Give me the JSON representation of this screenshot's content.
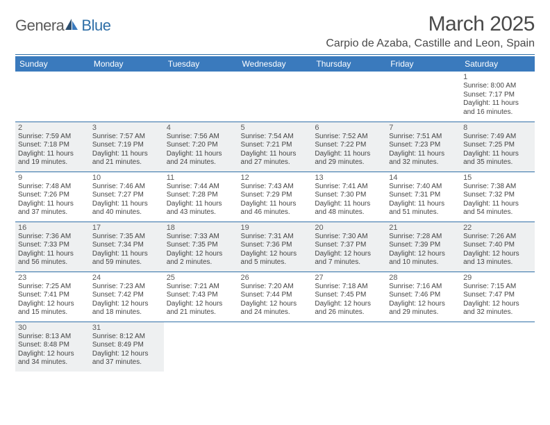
{
  "logo": {
    "part1": "Genera",
    "part2": "Blue"
  },
  "title": "March 2025",
  "location": "Carpio de Azaba, Castille and Leon, Spain",
  "colors": {
    "header_bg": "#3a7abd",
    "header_text": "#ffffff",
    "rule": "#2f6fa7",
    "shaded": "#eef0f1",
    "text": "#444444",
    "logo_gray": "#5a5a5a",
    "logo_blue": "#2f6fa7"
  },
  "weekdays": [
    "Sunday",
    "Monday",
    "Tuesday",
    "Wednesday",
    "Thursday",
    "Friday",
    "Saturday"
  ],
  "cells": [
    [
      {
        "day": "",
        "lines": []
      },
      {
        "day": "",
        "lines": []
      },
      {
        "day": "",
        "lines": []
      },
      {
        "day": "",
        "lines": []
      },
      {
        "day": "",
        "lines": []
      },
      {
        "day": "",
        "lines": []
      },
      {
        "day": "1",
        "lines": [
          "Sunrise: 8:00 AM",
          "Sunset: 7:17 PM",
          "Daylight: 11 hours",
          "and 16 minutes."
        ]
      }
    ],
    [
      {
        "day": "2",
        "shaded": true,
        "lines": [
          "Sunrise: 7:59 AM",
          "Sunset: 7:18 PM",
          "Daylight: 11 hours",
          "and 19 minutes."
        ]
      },
      {
        "day": "3",
        "shaded": true,
        "lines": [
          "Sunrise: 7:57 AM",
          "Sunset: 7:19 PM",
          "Daylight: 11 hours",
          "and 21 minutes."
        ]
      },
      {
        "day": "4",
        "shaded": true,
        "lines": [
          "Sunrise: 7:56 AM",
          "Sunset: 7:20 PM",
          "Daylight: 11 hours",
          "and 24 minutes."
        ]
      },
      {
        "day": "5",
        "shaded": true,
        "lines": [
          "Sunrise: 7:54 AM",
          "Sunset: 7:21 PM",
          "Daylight: 11 hours",
          "and 27 minutes."
        ]
      },
      {
        "day": "6",
        "shaded": true,
        "lines": [
          "Sunrise: 7:52 AM",
          "Sunset: 7:22 PM",
          "Daylight: 11 hours",
          "and 29 minutes."
        ]
      },
      {
        "day": "7",
        "shaded": true,
        "lines": [
          "Sunrise: 7:51 AM",
          "Sunset: 7:23 PM",
          "Daylight: 11 hours",
          "and 32 minutes."
        ]
      },
      {
        "day": "8",
        "shaded": true,
        "lines": [
          "Sunrise: 7:49 AM",
          "Sunset: 7:25 PM",
          "Daylight: 11 hours",
          "and 35 minutes."
        ]
      }
    ],
    [
      {
        "day": "9",
        "lines": [
          "Sunrise: 7:48 AM",
          "Sunset: 7:26 PM",
          "Daylight: 11 hours",
          "and 37 minutes."
        ]
      },
      {
        "day": "10",
        "lines": [
          "Sunrise: 7:46 AM",
          "Sunset: 7:27 PM",
          "Daylight: 11 hours",
          "and 40 minutes."
        ]
      },
      {
        "day": "11",
        "lines": [
          "Sunrise: 7:44 AM",
          "Sunset: 7:28 PM",
          "Daylight: 11 hours",
          "and 43 minutes."
        ]
      },
      {
        "day": "12",
        "lines": [
          "Sunrise: 7:43 AM",
          "Sunset: 7:29 PM",
          "Daylight: 11 hours",
          "and 46 minutes."
        ]
      },
      {
        "day": "13",
        "lines": [
          "Sunrise: 7:41 AM",
          "Sunset: 7:30 PM",
          "Daylight: 11 hours",
          "and 48 minutes."
        ]
      },
      {
        "day": "14",
        "lines": [
          "Sunrise: 7:40 AM",
          "Sunset: 7:31 PM",
          "Daylight: 11 hours",
          "and 51 minutes."
        ]
      },
      {
        "day": "15",
        "lines": [
          "Sunrise: 7:38 AM",
          "Sunset: 7:32 PM",
          "Daylight: 11 hours",
          "and 54 minutes."
        ]
      }
    ],
    [
      {
        "day": "16",
        "shaded": true,
        "lines": [
          "Sunrise: 7:36 AM",
          "Sunset: 7:33 PM",
          "Daylight: 11 hours",
          "and 56 minutes."
        ]
      },
      {
        "day": "17",
        "shaded": true,
        "lines": [
          "Sunrise: 7:35 AM",
          "Sunset: 7:34 PM",
          "Daylight: 11 hours",
          "and 59 minutes."
        ]
      },
      {
        "day": "18",
        "shaded": true,
        "lines": [
          "Sunrise: 7:33 AM",
          "Sunset: 7:35 PM",
          "Daylight: 12 hours",
          "and 2 minutes."
        ]
      },
      {
        "day": "19",
        "shaded": true,
        "lines": [
          "Sunrise: 7:31 AM",
          "Sunset: 7:36 PM",
          "Daylight: 12 hours",
          "and 5 minutes."
        ]
      },
      {
        "day": "20",
        "shaded": true,
        "lines": [
          "Sunrise: 7:30 AM",
          "Sunset: 7:37 PM",
          "Daylight: 12 hours",
          "and 7 minutes."
        ]
      },
      {
        "day": "21",
        "shaded": true,
        "lines": [
          "Sunrise: 7:28 AM",
          "Sunset: 7:39 PM",
          "Daylight: 12 hours",
          "and 10 minutes."
        ]
      },
      {
        "day": "22",
        "shaded": true,
        "lines": [
          "Sunrise: 7:26 AM",
          "Sunset: 7:40 PM",
          "Daylight: 12 hours",
          "and 13 minutes."
        ]
      }
    ],
    [
      {
        "day": "23",
        "lines": [
          "Sunrise: 7:25 AM",
          "Sunset: 7:41 PM",
          "Daylight: 12 hours",
          "and 15 minutes."
        ]
      },
      {
        "day": "24",
        "lines": [
          "Sunrise: 7:23 AM",
          "Sunset: 7:42 PM",
          "Daylight: 12 hours",
          "and 18 minutes."
        ]
      },
      {
        "day": "25",
        "lines": [
          "Sunrise: 7:21 AM",
          "Sunset: 7:43 PM",
          "Daylight: 12 hours",
          "and 21 minutes."
        ]
      },
      {
        "day": "26",
        "lines": [
          "Sunrise: 7:20 AM",
          "Sunset: 7:44 PM",
          "Daylight: 12 hours",
          "and 24 minutes."
        ]
      },
      {
        "day": "27",
        "lines": [
          "Sunrise: 7:18 AM",
          "Sunset: 7:45 PM",
          "Daylight: 12 hours",
          "and 26 minutes."
        ]
      },
      {
        "day": "28",
        "lines": [
          "Sunrise: 7:16 AM",
          "Sunset: 7:46 PM",
          "Daylight: 12 hours",
          "and 29 minutes."
        ]
      },
      {
        "day": "29",
        "lines": [
          "Sunrise: 7:15 AM",
          "Sunset: 7:47 PM",
          "Daylight: 12 hours",
          "and 32 minutes."
        ]
      }
    ],
    [
      {
        "day": "30",
        "shaded": true,
        "lines": [
          "Sunrise: 8:13 AM",
          "Sunset: 8:48 PM",
          "Daylight: 12 hours",
          "and 34 minutes."
        ]
      },
      {
        "day": "31",
        "shaded": true,
        "lines": [
          "Sunrise: 8:12 AM",
          "Sunset: 8:49 PM",
          "Daylight: 12 hours",
          "and 37 minutes."
        ]
      },
      {
        "day": "",
        "lines": []
      },
      {
        "day": "",
        "lines": []
      },
      {
        "day": "",
        "lines": []
      },
      {
        "day": "",
        "lines": []
      },
      {
        "day": "",
        "lines": []
      }
    ]
  ]
}
